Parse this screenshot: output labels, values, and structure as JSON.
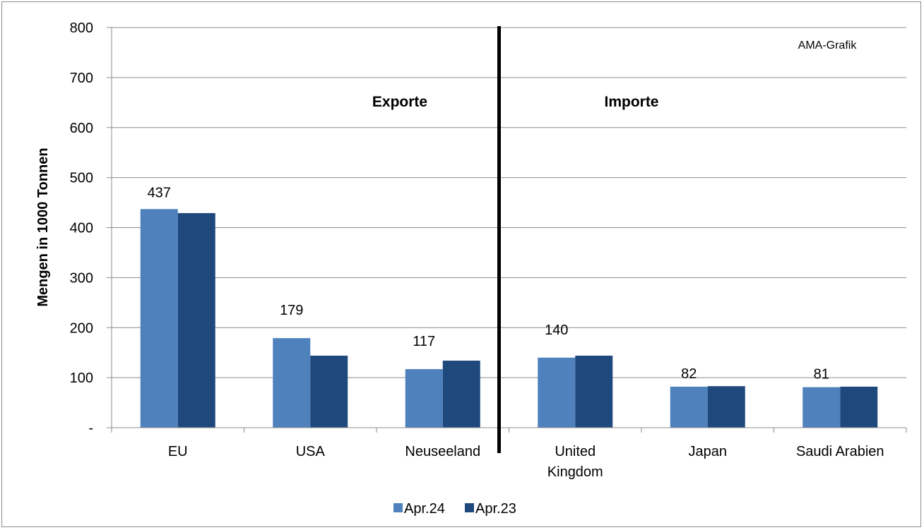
{
  "chart_data": {
    "type": "bar",
    "categories": [
      "EU",
      "USA",
      "Neuseeland",
      "United Kingdom",
      "Japan",
      "Saudi Arabien"
    ],
    "category_lines": [
      [
        "EU"
      ],
      [
        "USA"
      ],
      [
        "Neuseeland"
      ],
      [
        "United",
        "Kingdom"
      ],
      [
        "Japan"
      ],
      [
        "Saudi Arabien"
      ]
    ],
    "series": [
      {
        "name": "Apr.24",
        "values": [
          437,
          179,
          117,
          140,
          82,
          81
        ],
        "color": "#4f81bd"
      },
      {
        "name": "Apr.23",
        "values": [
          429,
          144,
          134,
          144,
          83,
          82
        ],
        "color": "#1f497d"
      }
    ],
    "data_labels": [
      "437",
      "179",
      "117",
      "140",
      "82",
      "81"
    ],
    "ylabel": "Mengen in 1000 Tonnen",
    "ylim": [
      0,
      800
    ],
    "yticks": [
      0,
      100,
      200,
      300,
      400,
      500,
      600,
      700,
      800
    ],
    "ytick_labels": [
      "-",
      "100",
      "200",
      "300",
      "400",
      "500",
      "600",
      "700",
      "800"
    ],
    "grid": true,
    "legend_position": "bottom",
    "annotations": {
      "left_section": "Exporte",
      "right_section": "Importe",
      "source": "AMA-Grafik"
    },
    "divider_after_category": 3
  }
}
